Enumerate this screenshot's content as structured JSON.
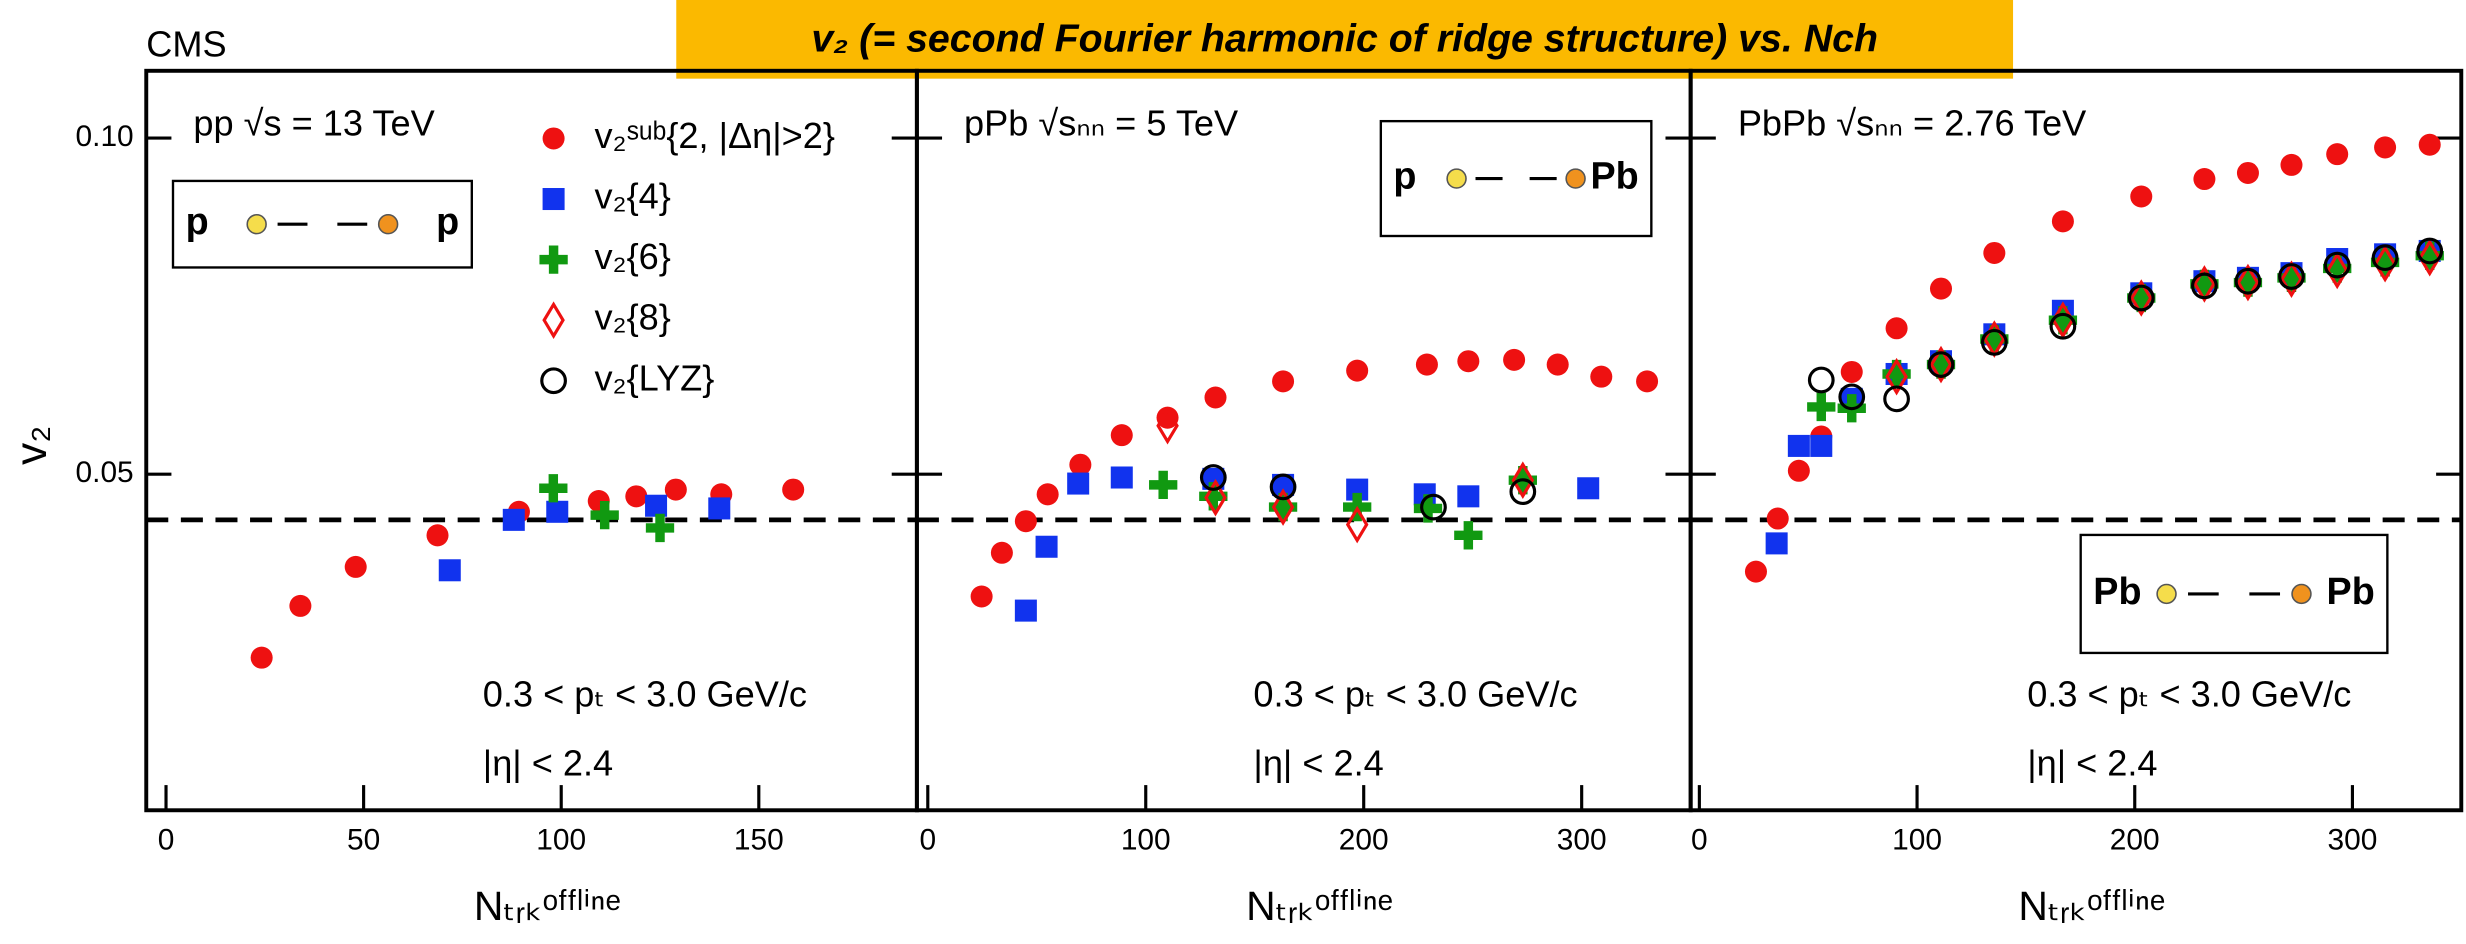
{
  "header": {
    "logo": "CMS",
    "title": "v₂ (= second Fourier harmonic of ridge structure) vs. Nch"
  },
  "y_label": "v₂",
  "x_label": "Nₜᵣₖᵒᶠᶠˡⁱⁿᵉ",
  "chart_data": [
    {
      "type": "scatter",
      "system": "pp √s = 13 TeV",
      "collision": [
        "p",
        "p"
      ],
      "cuts": [
        "0.3 < pₜ < 3.0 GeV/c",
        "|η| < 2.4"
      ],
      "xlim": [
        -5,
        190
      ],
      "ylim": [
        0,
        0.11
      ],
      "xticks": [
        0,
        50,
        100,
        150
      ],
      "yticks": [
        0.05,
        {
          "value": 0.1,
          "label": "0.10"
        }
      ],
      "reference_line": 0.0432,
      "series": [
        {
          "name": "v₂ˢᵘᵇ{2, |Δη|>2}",
          "color": "#ee1111",
          "marker": "circle",
          "x": [
            24.2,
            34,
            48,
            68.7,
            89.3,
            109.5,
            119,
            129,
            140.5,
            158.7
          ],
          "values": [
            0.0227,
            0.0304,
            0.0362,
            0.0409,
            0.0444,
            0.046,
            0.0467,
            0.0477,
            0.047,
            0.0477
          ]
        },
        {
          "name": "v₂{4}",
          "color": "#1133ee",
          "marker": "square",
          "x": [
            71.8,
            88,
            99,
            124,
            140
          ],
          "values": [
            0.0357,
            0.0432,
            0.0444,
            0.0453,
            0.0449
          ]
        },
        {
          "name": "v₂{6}",
          "color": "#119911",
          "marker": "cross",
          "x": [
            98,
            111,
            125
          ],
          "values": [
            0.0479,
            0.0439,
            0.042
          ]
        },
        {
          "name": "v₂{8}",
          "color": "#ee1111",
          "marker": "diamond",
          "x": [],
          "values": []
        },
        {
          "name": "v₂{LYZ}",
          "color": "#000000",
          "marker": "ring",
          "x": [],
          "values": []
        }
      ]
    },
    {
      "type": "scatter",
      "system": "pPb √sₙₙ = 5 TeV",
      "collision": [
        "p",
        "Pb"
      ],
      "cuts": [
        "0.3 < pₜ < 3.0 GeV/c",
        "|η| < 2.4"
      ],
      "xlim": [
        -5,
        350
      ],
      "ylim": [
        0,
        0.11
      ],
      "xticks": [
        0,
        100,
        200,
        300
      ],
      "reference_line": 0.0432,
      "series": [
        {
          "color": "#ee1111",
          "marker": "circle",
          "x": [
            24.7,
            34,
            45,
            55,
            70,
            89,
            110,
            132,
            163,
            197,
            229,
            248,
            269,
            289,
            309,
            330
          ],
          "values": [
            0.0318,
            0.0383,
            0.043,
            0.047,
            0.0514,
            0.0558,
            0.0584,
            0.0614,
            0.0638,
            0.0654,
            0.0663,
            0.0668,
            0.067,
            0.0663,
            0.0645,
            0.0638
          ]
        },
        {
          "color": "#1133ee",
          "marker": "square",
          "x": [
            45,
            54.5,
            69,
            89,
            131,
            163,
            197,
            228,
            248,
            303
          ],
          "values": [
            0.0297,
            0.0392,
            0.0486,
            0.0495,
            0.0493,
            0.0484,
            0.0477,
            0.047,
            0.0467,
            0.0479
          ]
        },
        {
          "color": "#119911",
          "marker": "cross",
          "x": [
            108,
            131,
            163,
            197,
            229.5,
            248,
            273
          ],
          "values": [
            0.0484,
            0.0467,
            0.0451,
            0.0451,
            0.0449,
            0.0409,
            0.0491
          ]
        },
        {
          "color": "#ee1111",
          "marker": "diamond",
          "x": [
            110,
            132,
            163,
            197,
            273
          ],
          "values": [
            0.0572,
            0.0465,
            0.0451,
            0.0425,
            0.0491
          ]
        },
        {
          "color": "#000000",
          "marker": "ring",
          "x": [
            131,
            163,
            232,
            273
          ],
          "values": [
            0.0495,
            0.0481,
            0.0451,
            0.0474
          ]
        }
      ]
    },
    {
      "type": "scatter",
      "system": "PbPb √sₙₙ = 2.76 TeV",
      "collision": [
        "Pb",
        "Pb"
      ],
      "cuts": [
        "0.3 < pₜ < 3.0 GeV/c",
        "|η| < 2.4"
      ],
      "xlim": [
        -4,
        350
      ],
      "ylim": [
        0,
        0.11
      ],
      "xticks": [
        0,
        100,
        200,
        300
      ],
      "reference_line": 0.0432,
      "series": [
        {
          "color": "#ee1111",
          "marker": "circle",
          "x": [
            26,
            36,
            45.7,
            56,
            70,
            90.6,
            111,
            135.5,
            167,
            203,
            232,
            252,
            272,
            293,
            315,
            335.5
          ],
          "values": [
            0.0355,
            0.0434,
            0.0505,
            0.0556,
            0.0652,
            0.0717,
            0.0776,
            0.0829,
            0.0876,
            0.0913,
            0.0939,
            0.0948,
            0.096,
            0.0976,
            0.0986,
            0.099
          ]
        },
        {
          "color": "#1133ee",
          "marker": "square",
          "x": [
            35.5,
            45.7,
            56,
            70,
            90.6,
            111,
            135.5,
            167,
            203,
            232,
            252,
            272,
            293,
            315,
            335.5
          ],
          "values": [
            0.0397,
            0.0542,
            0.0542,
            0.0612,
            0.0649,
            0.0668,
            0.0708,
            0.0743,
            0.0769,
            0.0787,
            0.0792,
            0.0799,
            0.082,
            0.0827,
            0.0832
          ]
        },
        {
          "color": "#119911",
          "marker": "cross",
          "x": [
            56,
            70,
            90.6,
            111,
            135.5,
            167,
            203,
            232,
            252,
            272,
            293,
            315,
            335.5
          ],
          "values": [
            0.06,
            0.0598,
            0.0649,
            0.0663,
            0.0701,
            0.0729,
            0.0762,
            0.0783,
            0.0785,
            0.0792,
            0.0806,
            0.0815,
            0.0825
          ]
        },
        {
          "color": "#ee1111",
          "marker": "diamond",
          "x": [
            90.6,
            111,
            135.5,
            167,
            203,
            232,
            252,
            272,
            293,
            315,
            335.5
          ],
          "values": [
            0.0645,
            0.0663,
            0.0701,
            0.0729,
            0.0762,
            0.0783,
            0.0785,
            0.079,
            0.0803,
            0.0813,
            0.0822
          ]
        },
        {
          "color": "#000000",
          "marker": "ring",
          "x": [
            56,
            70,
            90.6,
            111,
            135.5,
            167,
            203,
            232,
            252,
            272,
            293,
            315,
            335.5
          ],
          "values": [
            0.064,
            0.0615,
            0.0612,
            0.0663,
            0.0696,
            0.072,
            0.0762,
            0.078,
            0.0787,
            0.0794,
            0.0811,
            0.0822,
            0.0832
          ]
        }
      ]
    }
  ]
}
